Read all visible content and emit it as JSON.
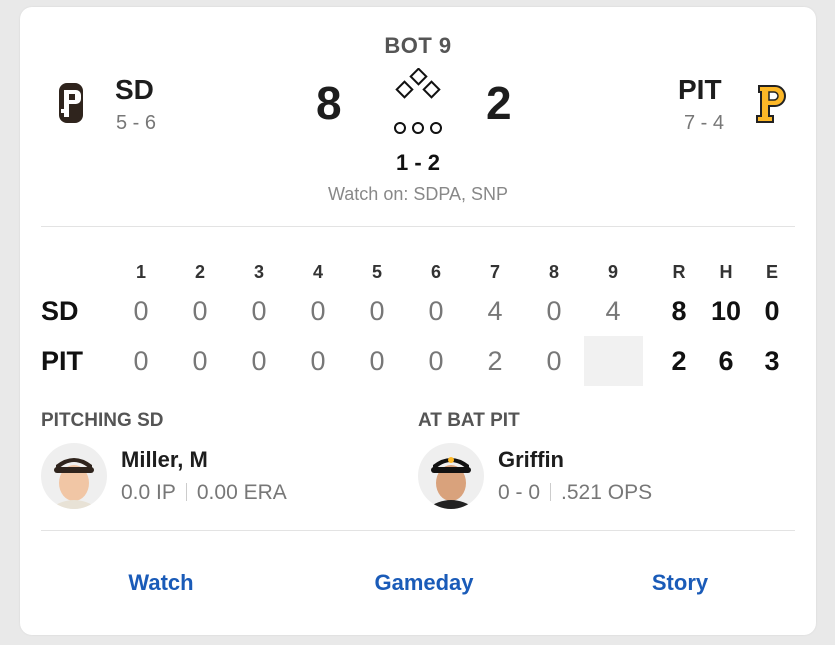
{
  "status": {
    "inning": "BOT 9",
    "count": "1 - 2",
    "watch_on": "Watch on: SDPA, SNP"
  },
  "away": {
    "abbr": "SD",
    "record": "5 - 6",
    "score": "8",
    "color": "#2f241d"
  },
  "home": {
    "abbr": "PIT",
    "record": "7 - 4",
    "score": "2",
    "color": "#fdb827"
  },
  "linescore": {
    "innings": [
      "1",
      "2",
      "3",
      "4",
      "5",
      "6",
      "7",
      "8",
      "9"
    ],
    "totals_headers": [
      "R",
      "H",
      "E"
    ],
    "rows": [
      {
        "team": "SD",
        "innings": [
          "0",
          "0",
          "0",
          "0",
          "0",
          "0",
          "4",
          "0",
          "4"
        ],
        "totals": [
          "8",
          "10",
          "0"
        ]
      },
      {
        "team": "PIT",
        "innings": [
          "0",
          "0",
          "0",
          "0",
          "0",
          "0",
          "2",
          "0",
          ""
        ],
        "totals": [
          "2",
          "6",
          "3"
        ]
      }
    ]
  },
  "pitching": {
    "label_prefix": "PITCHING",
    "label_team": "SD",
    "name": "Miller, M",
    "stat1": "0.0 IP",
    "stat2": "0.00 ERA"
  },
  "at_bat": {
    "label_prefix": "AT BAT",
    "label_team": "PIT",
    "name": "Griffin",
    "stat1": "0 - 0",
    "stat2": ".521 OPS"
  },
  "links": {
    "watch": "Watch",
    "gameday": "Gameday",
    "story": "Story"
  }
}
